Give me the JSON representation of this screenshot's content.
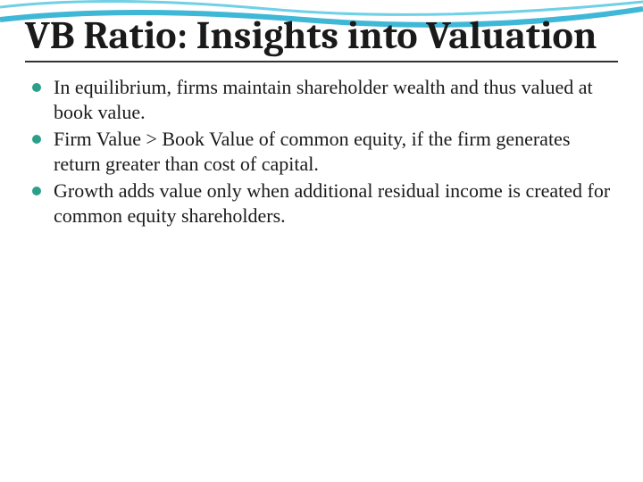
{
  "slide": {
    "title": "VB Ratio: Insights into Valuation",
    "title_fontsize": 44,
    "title_color": "#1a1a1a",
    "underline_color": "#333333",
    "bullets": [
      "In equilibrium, firms maintain shareholder wealth and thus valued at book value.",
      "Firm Value > Book Value of common equity, if the firm generates return greater than cost of capital.",
      "Growth adds value only when additional residual income is created for common equity shareholders."
    ],
    "bullet_fontsize": 22,
    "bullet_color": "#1a1a1a",
    "bullet_marker_color": "#2aa08a",
    "background_color": "#ffffff",
    "wave": {
      "top_curve_color": "#6fd0e6",
      "bottom_curve_color": "#3fb7d6"
    }
  }
}
